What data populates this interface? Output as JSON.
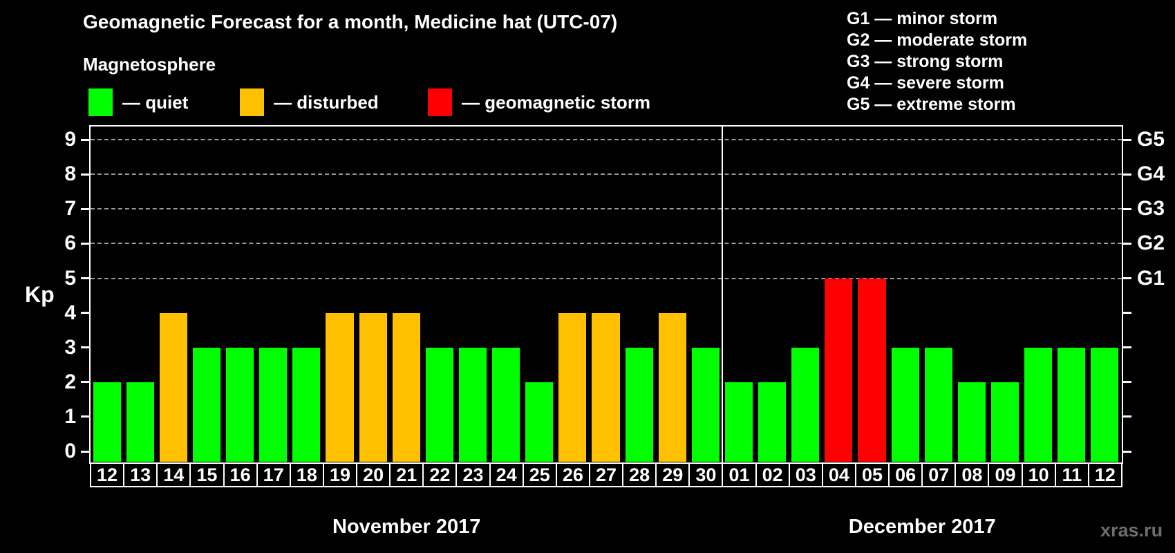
{
  "title": "Geomagnetic Forecast for a month, Medicine hat (UTC-07)",
  "subtitle": "Magnetosphere",
  "legend": {
    "items": [
      {
        "condition": "quiet",
        "label": "— quiet",
        "color": "#00ff00"
      },
      {
        "condition": "disturbed",
        "label": "— disturbed",
        "color": "#ffc000"
      },
      {
        "condition": "storm",
        "label": "— geomagnetic storm",
        "color": "#ff0000"
      }
    ]
  },
  "storm_scale": {
    "lines": [
      "G1 — minor storm",
      "G2 — moderate storm",
      "G3 — strong storm",
      "G4 — severe storm",
      "G5 — extreme storm"
    ]
  },
  "watermark": "xras.ru",
  "chart_data": {
    "type": "bar",
    "title": "Geomagnetic Forecast for a month, Medicine hat (UTC-07)",
    "ylabel": "Kp",
    "ylim": [
      0,
      9
    ],
    "yticks": [
      0,
      1,
      2,
      3,
      4,
      5,
      6,
      7,
      8,
      9
    ],
    "grid_on": true,
    "gridlines_at_kp": [
      5,
      6,
      7,
      8,
      9
    ],
    "grid_color": "#999999",
    "axis_color": "#ffffff",
    "right_axis_labels": [
      {
        "kp": 5,
        "label": "G1"
      },
      {
        "kp": 6,
        "label": "G2"
      },
      {
        "kp": 7,
        "label": "G3"
      },
      {
        "kp": 8,
        "label": "G4"
      },
      {
        "kp": 9,
        "label": "G5"
      }
    ],
    "condition_colors": {
      "quiet": "#00ff00",
      "disturbed": "#ffc000",
      "storm": "#ff0000"
    },
    "months": [
      {
        "label": "November 2017",
        "days": [
          {
            "day": "12",
            "kp": 2,
            "condition": "quiet"
          },
          {
            "day": "13",
            "kp": 2,
            "condition": "quiet"
          },
          {
            "day": "14",
            "kp": 4,
            "condition": "disturbed"
          },
          {
            "day": "15",
            "kp": 3,
            "condition": "quiet"
          },
          {
            "day": "16",
            "kp": 3,
            "condition": "quiet"
          },
          {
            "day": "17",
            "kp": 3,
            "condition": "quiet"
          },
          {
            "day": "18",
            "kp": 3,
            "condition": "quiet"
          },
          {
            "day": "19",
            "kp": 4,
            "condition": "disturbed"
          },
          {
            "day": "20",
            "kp": 4,
            "condition": "disturbed"
          },
          {
            "day": "21",
            "kp": 4,
            "condition": "disturbed"
          },
          {
            "day": "22",
            "kp": 3,
            "condition": "quiet"
          },
          {
            "day": "23",
            "kp": 3,
            "condition": "quiet"
          },
          {
            "day": "24",
            "kp": 3,
            "condition": "quiet"
          },
          {
            "day": "25",
            "kp": 2,
            "condition": "quiet"
          },
          {
            "day": "26",
            "kp": 4,
            "condition": "disturbed"
          },
          {
            "day": "27",
            "kp": 4,
            "condition": "disturbed"
          },
          {
            "day": "28",
            "kp": 3,
            "condition": "quiet"
          },
          {
            "day": "29",
            "kp": 4,
            "condition": "disturbed"
          },
          {
            "day": "30",
            "kp": 3,
            "condition": "quiet"
          }
        ]
      },
      {
        "label": "December 2017",
        "days": [
          {
            "day": "01",
            "kp": 2,
            "condition": "quiet"
          },
          {
            "day": "02",
            "kp": 2,
            "condition": "quiet"
          },
          {
            "day": "03",
            "kp": 3,
            "condition": "quiet"
          },
          {
            "day": "04",
            "kp": 5,
            "condition": "storm"
          },
          {
            "day": "05",
            "kp": 5,
            "condition": "storm"
          },
          {
            "day": "06",
            "kp": 3,
            "condition": "quiet"
          },
          {
            "day": "07",
            "kp": 3,
            "condition": "quiet"
          },
          {
            "day": "08",
            "kp": 2,
            "condition": "quiet"
          },
          {
            "day": "09",
            "kp": 2,
            "condition": "quiet"
          },
          {
            "day": "10",
            "kp": 3,
            "condition": "quiet"
          },
          {
            "day": "11",
            "kp": 3,
            "condition": "quiet"
          },
          {
            "day": "12",
            "kp": 3,
            "condition": "quiet"
          }
        ]
      }
    ]
  }
}
